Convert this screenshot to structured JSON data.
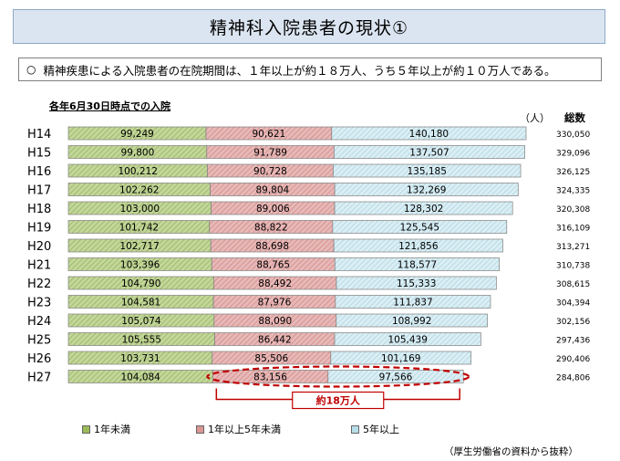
{
  "title": "精神科入院患者の現状①",
  "summary": {
    "bullet": "○",
    "text": "精神疾患による入院患者の在院期間は、１年以上が約１８万人、うち５年以上が約１０万人である。"
  },
  "subtitle": "各年6月30日時点での入院",
  "unit_label": "（人）",
  "total_header": "総数",
  "annotation": "約18万人",
  "source": "（厚生労働省の資料から抜粋）",
  "colors": {
    "less_1yr": "#9bbb59",
    "one_to_five": "#d99694",
    "five_plus": "#b7dee8",
    "annotation": "#c00000"
  },
  "chart_data": {
    "type": "bar",
    "orientation": "horizontal",
    "stacked": true,
    "categories": [
      "H14",
      "H15",
      "H16",
      "H17",
      "H18",
      "H19",
      "H20",
      "H21",
      "H22",
      "H23",
      "H24",
      "H25",
      "H26",
      "H27"
    ],
    "series": [
      {
        "name": "1年未満",
        "values": [
          99249,
          99800,
          100212,
          102262,
          103000,
          101742,
          102717,
          103396,
          104790,
          104581,
          105074,
          105555,
          103731,
          104084
        ]
      },
      {
        "name": "1年以上5年未満",
        "values": [
          90621,
          91789,
          90728,
          89804,
          89006,
          88822,
          88698,
          88765,
          88492,
          87976,
          88090,
          86442,
          85506,
          83156
        ]
      },
      {
        "name": "5年以上",
        "values": [
          140180,
          137507,
          135185,
          132269,
          128302,
          125545,
          121856,
          118577,
          115333,
          111837,
          108992,
          105439,
          101169,
          97566
        ]
      }
    ],
    "totals": [
      330050,
      329096,
      326125,
      324335,
      320308,
      316109,
      313271,
      310738,
      308615,
      304394,
      302156,
      297436,
      290406,
      284806
    ],
    "legend_position": "bottom"
  }
}
